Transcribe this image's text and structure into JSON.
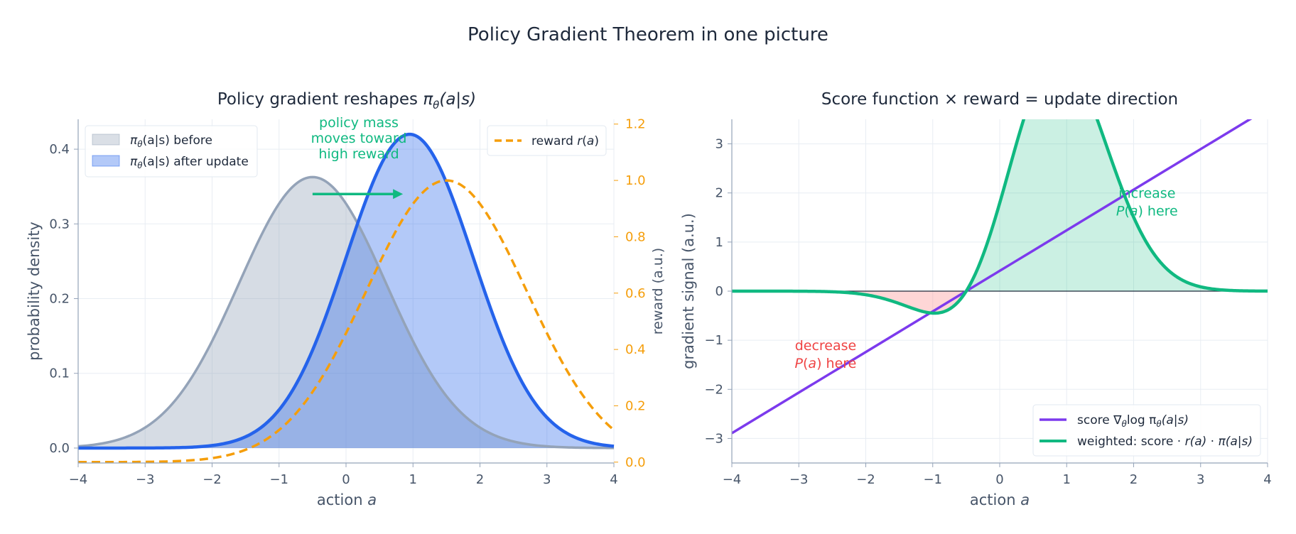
{
  "figure_title": "Policy Gradient Theorem in one picture",
  "colors": {
    "before": "#94a3b8",
    "after": "#2563eb",
    "reward": "#f59e0b",
    "annotation": "#10b981",
    "score": "#7c3aed",
    "weighted": "#10b981",
    "decrease": "#ef4444",
    "axis": "#94a3b8",
    "text": "#475569"
  },
  "chart_data": [
    {
      "type": "area",
      "title": "Policy gradient reshapes πθ(a|s)",
      "title_parts": [
        "Policy gradient reshapes ",
        "π",
        "θ",
        "(a|s)"
      ],
      "xlabel": "action a",
      "xlabel_parts": [
        "action ",
        "a"
      ],
      "ylabel": "probability density",
      "y2label": "reward (a.u.)",
      "xlim": [
        -4,
        4
      ],
      "ylim": [
        -0.02,
        0.44
      ],
      "y2lim": [
        -0.003,
        1.217
      ],
      "xticks": [
        "−4",
        "−3",
        "−2",
        "−1",
        "0",
        "1",
        "2",
        "3",
        "4"
      ],
      "yticks": [
        "0.0",
        "0.1",
        "0.2",
        "0.3",
        "0.4"
      ],
      "y2ticks": [
        "0.0",
        "0.2",
        "0.4",
        "0.6",
        "0.8",
        "1.0",
        "1.2"
      ],
      "grid": true,
      "series": [
        {
          "name": "πθ(a|s) before",
          "label_parts": [
            "π",
            "θ",
            "(a|s) before"
          ],
          "kind": "gaussian_pdf",
          "mean": -0.5,
          "std": 1.1,
          "fill": true
        },
        {
          "name": "πθ(a|s) after update",
          "label_parts": [
            "π",
            "θ",
            "(a|s) after update"
          ],
          "kind": "gaussian_pdf",
          "mean": 0.95,
          "std": 0.95,
          "fill": true
        },
        {
          "name": "reward r(a)",
          "label_parts": [
            "reward ",
            "r",
            "(",
            "a",
            ")"
          ],
          "kind": "gaussian_bump",
          "center": 1.5,
          "width": 1.2,
          "peak": 1.0,
          "axis": "y2",
          "dashed": true
        }
      ],
      "legend_left": {
        "placement": "upper-left"
      },
      "legend_right": {
        "placement": "upper-right"
      },
      "annotation": {
        "lines": [
          "policy mass",
          "moves toward",
          "high reward"
        ],
        "arrow_from_x": -0.5,
        "arrow_to_x": 0.85,
        "arrow_y": 0.34
      }
    },
    {
      "type": "line",
      "title": "Score function × reward = update direction",
      "xlabel": "action a",
      "xlabel_parts": [
        "action ",
        "a"
      ],
      "ylabel": "gradient signal (a.u.)",
      "xlim": [
        -4,
        4
      ],
      "ylim": [
        -3.5,
        3.5
      ],
      "xticks": [
        "−4",
        "−3",
        "−2",
        "−1",
        "0",
        "1",
        "2",
        "3",
        "4"
      ],
      "yticks": [
        "−3",
        "−2",
        "−1",
        "0",
        "1",
        "2",
        "3"
      ],
      "grid": true,
      "series": [
        {
          "name": "score ∇θlog πθ(a|s)",
          "label_parts": [
            "score ∇",
            "θ",
            "log π",
            "θ",
            "(a|s)"
          ],
          "kind": "score_line",
          "mean": -0.5,
          "std": 1.1
        },
        {
          "name": "weighted: score · r(a) · π(a|s)",
          "label_parts": [
            "weighted: score · ",
            "r(a)",
            " · ",
            "π(a|s)"
          ],
          "kind": "weighted",
          "scale": 29
        }
      ],
      "legend": {
        "placement": "lower-right"
      },
      "annotations": [
        {
          "lines": [
            "increase",
            "P(a) here"
          ],
          "x": 2.2,
          "y": 1.9,
          "color_key": "annotation"
        },
        {
          "lines": [
            "decrease",
            "P(a) here"
          ],
          "x": -2.6,
          "y": -1.2,
          "color_key": "decrease"
        }
      ]
    }
  ]
}
